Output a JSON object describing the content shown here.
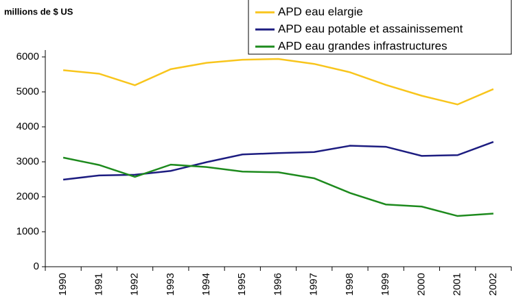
{
  "chart_data": {
    "type": "line",
    "y_unit_label": "millions de $ US",
    "categories": [
      "1990",
      "1991",
      "1992",
      "1993",
      "1994",
      "1995",
      "1996",
      "1997",
      "1998",
      "1999",
      "2000",
      "2001",
      "2002"
    ],
    "series": [
      {
        "name": "APD eau elargie",
        "color": "#f8c51c",
        "values": [
          5620,
          5520,
          5190,
          5650,
          5830,
          5920,
          5940,
          5800,
          5560,
          5200,
          4890,
          4640,
          5080
        ]
      },
      {
        "name": "APD eau potable et assainissement",
        "color": "#1c1c80",
        "values": [
          2490,
          2610,
          2630,
          2740,
          2990,
          3210,
          3250,
          3280,
          3460,
          3430,
          3170,
          3190,
          3570
        ]
      },
      {
        "name": "APD eau grandes infrastructures",
        "color": "#1d8a1d",
        "values": [
          3120,
          2910,
          2570,
          2920,
          2850,
          2720,
          2700,
          2530,
          2110,
          1780,
          1720,
          1450,
          1520
        ]
      }
    ],
    "ylim": [
      0,
      6000
    ],
    "yticks": [
      0,
      1000,
      2000,
      3000,
      4000,
      5000,
      6000
    ],
    "grid": false,
    "legend": "top-right"
  }
}
